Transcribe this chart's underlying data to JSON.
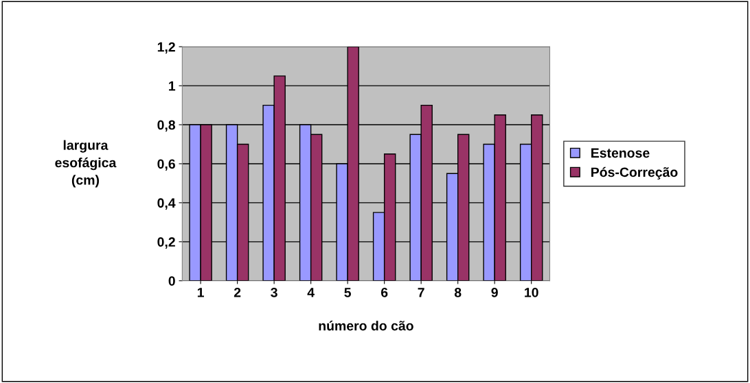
{
  "chart_data": {
    "type": "bar",
    "xlabel": "número do cão",
    "ylabel": "largura\nesofágica\n(cm)",
    "categories": [
      "1",
      "2",
      "3",
      "4",
      "5",
      "6",
      "7",
      "8",
      "9",
      "10"
    ],
    "series": [
      {
        "name": "Estenose",
        "color": "#9999ff",
        "values": [
          0.8,
          0.8,
          0.9,
          0.8,
          0.6,
          0.35,
          0.75,
          0.55,
          0.7,
          0.7
        ]
      },
      {
        "name": "Pós-Correção",
        "color": "#993366",
        "values": [
          0.8,
          0.7,
          1.05,
          0.75,
          1.2,
          0.65,
          0.9,
          0.75,
          0.85,
          0.85
        ]
      }
    ],
    "ylim": [
      0,
      1.2
    ],
    "yticks": [
      0,
      {
        "value": 0.2,
        "label": "0,2"
      },
      {
        "value": 0.4,
        "label": "0,4"
      },
      {
        "value": 0.6,
        "label": "0,6"
      },
      {
        "value": 0.8,
        "label": "0,8"
      },
      1,
      {
        "value": 1.2,
        "label": "1,2"
      }
    ],
    "grid": "y",
    "legend": "right"
  }
}
